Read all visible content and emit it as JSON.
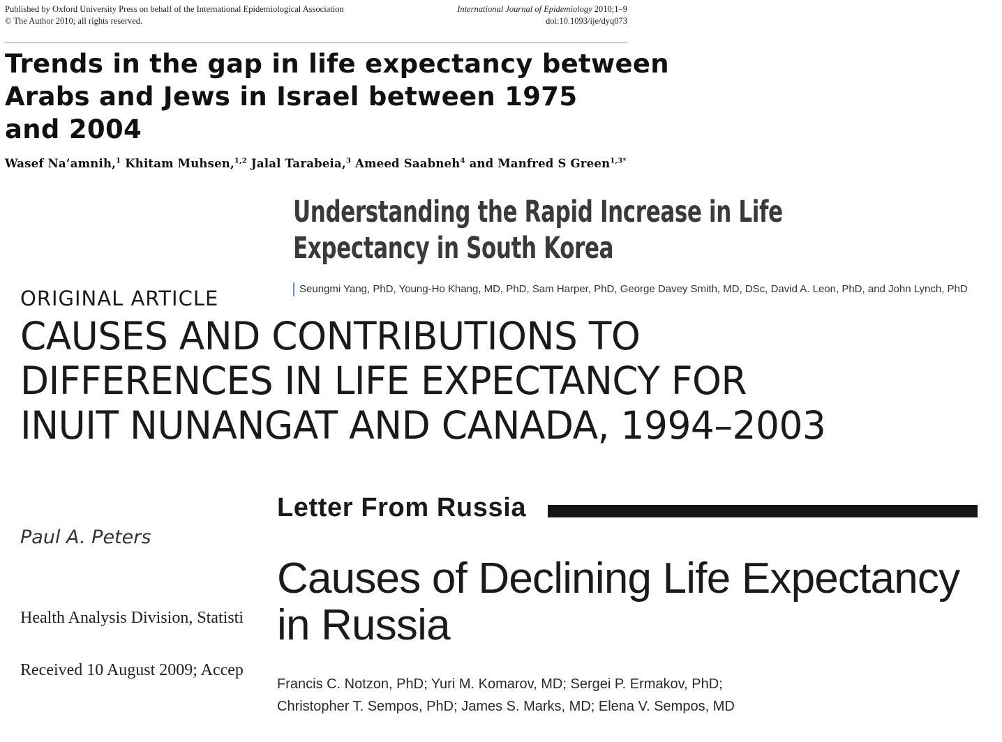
{
  "ije": {
    "publisher_line": "Published by Oxford University Press on behalf of the International Epidemiological Association",
    "copyright_line": "© The Author 2010; all rights reserved.",
    "journal_name": "International Journal of Epidemiology",
    "journal_issue": " 2010;1–9",
    "doi": "doi:10.1093/ije/dyq073",
    "title_lines": [
      "Trends in the gap in life expectancy between",
      "Arabs and Jews in Israel between 1975",
      "and 2004"
    ],
    "authors": [
      {
        "name": "Wasef Na’amnih,",
        "sup": "1"
      },
      {
        "name": " Khitam Muhsen,",
        "sup": "1,2"
      },
      {
        "name": " Jalal Tarabeia,",
        "sup": "3"
      },
      {
        "name": " Ameed Saabneh",
        "sup": "4"
      },
      {
        "name": " and Manfred S Green",
        "sup": "1,3*"
      }
    ]
  },
  "korea": {
    "title_lines": [
      "Understanding the Rapid Increase in Life",
      "Expectancy in South Korea"
    ],
    "authors": "Seungmi Yang, PhD, Young-Ho Khang, MD, PhD, Sam Harper, PhD, George Davey Smith, MD, DSc, David A. Leon, PhD, and John Lynch, PhD",
    "accent_color": "#5b8fc7"
  },
  "inuit": {
    "section_label": "ORIGINAL ARTICLE",
    "title_lines": [
      "CAUSES AND CONTRIBUTIONS TO",
      "DIFFERENCES IN LIFE EXPECTANCY FOR",
      "INUIT NUNANGAT AND CANADA, 1994–2003"
    ],
    "author": "Paul A. Peters",
    "affiliation": "Health Analysis Division, Statisti",
    "received": "Received 10 August 2009; Accep"
  },
  "russia": {
    "section_label": "Letter From Russia",
    "title_lines": [
      "Causes of Declining Life Expectancy",
      "in Russia"
    ],
    "author_lines": [
      "Francis C. Notzon, PhD; Yuri M. Komarov, MD; Sergei P. Ermakov, PhD;",
      "Christopher T. Sempos, PhD; James S. Marks, MD; Elena V. Sempos, MD"
    ]
  }
}
